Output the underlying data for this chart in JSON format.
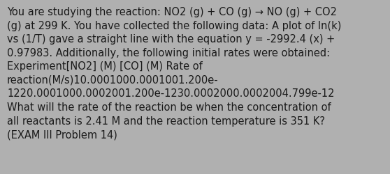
{
  "text": "You are studying the reaction: NO2 (g) + CO (g) → NO (g) + CO2\n(g) at 299 K. You have collected the following data: A plot of ln(k)\nvs (1/T) gave a straight line with the equation y = -2992.4 (x) +\n0.97983. Additionally, the following initial rates were obtained:\nExperiment[NO2] (M) [CO] (M) Rate of\nreaction(M/s)10.0001000.0001001.200e-\n1220.0001000.0002001.200e-1230.0002000.0002004.799e-12\nWhat will the rate of the reaction be when the concentration of\nall reactants is 2.41 M and the reaction temperature is 351 K?\n(EXAM III Problem 14)",
  "bg_color": "#b0b0b0",
  "text_color": "#1a1a1a",
  "font_size": 10.5,
  "fig_width": 5.58,
  "fig_height": 2.51
}
